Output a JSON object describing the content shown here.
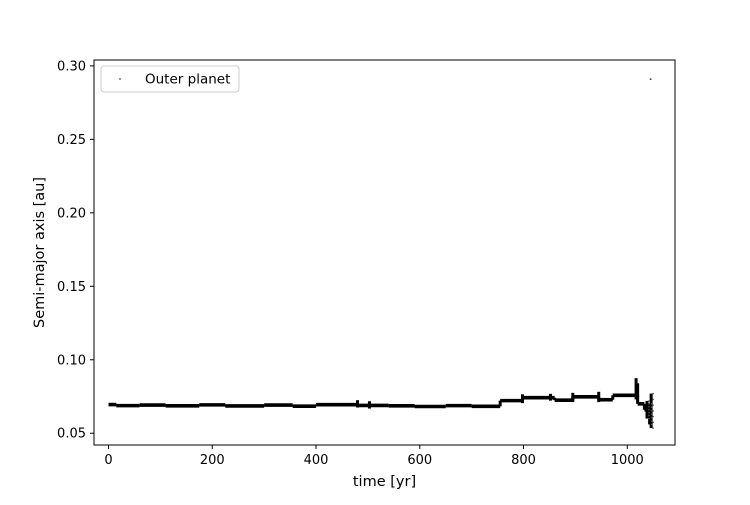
{
  "chart_data": {
    "type": "scatter",
    "title": "",
    "xlabel": "time [yr]",
    "ylabel": "Semi-major axis [au]",
    "xlim": [
      -28,
      1092
    ],
    "ylim": [
      0.042,
      0.304
    ],
    "xticks": [
      0,
      200,
      400,
      600,
      800,
      1000
    ],
    "yticks": [
      0.05,
      0.1,
      0.15,
      0.2,
      0.25,
      0.3
    ],
    "ytick_labels": [
      "0.05",
      "0.10",
      "0.15",
      "0.20",
      "0.25",
      "0.30"
    ],
    "grid": false,
    "legend": {
      "position": "top-left",
      "entries": [
        "Outer planet"
      ]
    },
    "series": [
      {
        "name": "Outer planet",
        "marker_color": "#555555",
        "segments": [
          {
            "x": [
              0,
              15
            ],
            "y": 0.0695
          },
          {
            "x": [
              15,
              60
            ],
            "y": 0.0688
          },
          {
            "x": [
              60,
              110
            ],
            "y": 0.0692
          },
          {
            "x": [
              110,
              175
            ],
            "y": 0.0687
          },
          {
            "x": [
              175,
              225
            ],
            "y": 0.0693
          },
          {
            "x": [
              225,
              300
            ],
            "y": 0.0686
          },
          {
            "x": [
              300,
              355
            ],
            "y": 0.0692
          },
          {
            "x": [
              355,
              400
            ],
            "y": 0.0684
          },
          {
            "x": [
              400,
              480
            ],
            "y": 0.0694
          },
          {
            "x": [
              480,
              540
            ],
            "y": 0.0689
          },
          {
            "x": [
              540,
              590
            ],
            "y": 0.0687
          },
          {
            "x": [
              590,
              650
            ],
            "y": 0.0682
          },
          {
            "x": [
              650,
              700
            ],
            "y": 0.0688
          },
          {
            "x": [
              700,
              755
            ],
            "y": 0.0683
          },
          {
            "x": [
              755,
              798
            ],
            "y": 0.0722
          },
          {
            "x": [
              798,
              860
            ],
            "y": 0.0742
          },
          {
            "x": [
              860,
              895
            ],
            "y": 0.0725
          },
          {
            "x": [
              895,
              945
            ],
            "y": 0.0748
          },
          {
            "x": [
              945,
              972
            ],
            "y": 0.0728
          },
          {
            "x": [
              972,
              1020
            ],
            "y": 0.0758
          },
          {
            "x": [
              1020,
              1033
            ],
            "y": 0.07
          },
          {
            "x": [
              1033,
              1045
            ],
            "y": 0.066
          }
        ],
        "spikes": [
          {
            "x": 480,
            "y": [
              0.0675,
              0.0725
            ]
          },
          {
            "x": 503,
            "y": [
              0.0668,
              0.0718
            ]
          },
          {
            "x": 798,
            "y": [
              0.0705,
              0.0765
            ]
          },
          {
            "x": 852,
            "y": [
              0.0722,
              0.0768
            ]
          },
          {
            "x": 895,
            "y": [
              0.0712,
              0.0775
            ]
          },
          {
            "x": 945,
            "y": [
              0.0712,
              0.0782
            ]
          },
          {
            "x": 1017,
            "y": [
              0.073,
              0.0875
            ]
          },
          {
            "x": 1020,
            "y": [
              0.0745,
              0.084
            ]
          },
          {
            "x": 1038,
            "y": [
              0.06,
              0.072
            ]
          },
          {
            "x": 1043,
            "y": [
              0.056,
              0.07
            ]
          },
          {
            "x": 1046,
            "y": [
              0.0535,
              0.077
            ]
          }
        ],
        "outliers": [
          {
            "x": 1045,
            "y": 0.291
          }
        ]
      }
    ]
  }
}
